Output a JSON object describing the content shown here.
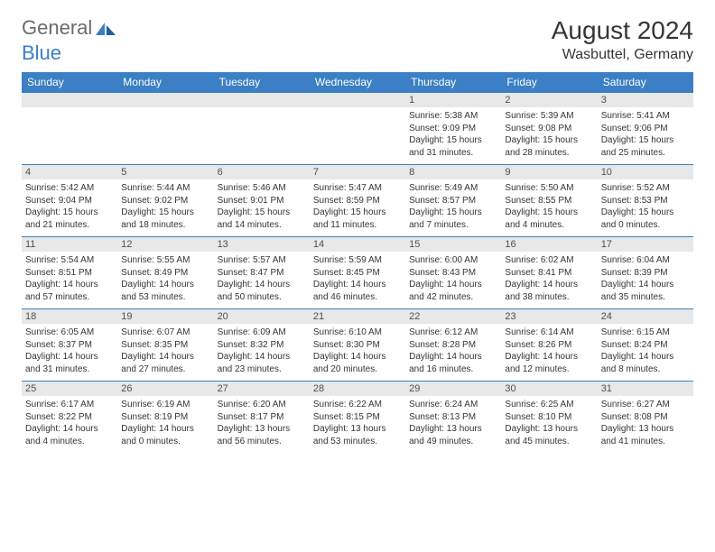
{
  "logo": {
    "word1": "General",
    "word2": "Blue"
  },
  "title": "August 2024",
  "location": "Wasbuttel, Germany",
  "colors": {
    "header_bg": "#3b7fc4",
    "header_text": "#ffffff",
    "daynum_bg": "#e8e8e8",
    "text": "#353535",
    "logo_gray": "#6b6b6b",
    "logo_blue": "#3b7fc4"
  },
  "day_names": [
    "Sunday",
    "Monday",
    "Tuesday",
    "Wednesday",
    "Thursday",
    "Friday",
    "Saturday"
  ],
  "weeks": [
    [
      null,
      null,
      null,
      null,
      {
        "n": "1",
        "sr": "Sunrise: 5:38 AM",
        "ss": "Sunset: 9:09 PM",
        "dl": "Daylight: 15 hours and 31 minutes."
      },
      {
        "n": "2",
        "sr": "Sunrise: 5:39 AM",
        "ss": "Sunset: 9:08 PM",
        "dl": "Daylight: 15 hours and 28 minutes."
      },
      {
        "n": "3",
        "sr": "Sunrise: 5:41 AM",
        "ss": "Sunset: 9:06 PM",
        "dl": "Daylight: 15 hours and 25 minutes."
      }
    ],
    [
      {
        "n": "4",
        "sr": "Sunrise: 5:42 AM",
        "ss": "Sunset: 9:04 PM",
        "dl": "Daylight: 15 hours and 21 minutes."
      },
      {
        "n": "5",
        "sr": "Sunrise: 5:44 AM",
        "ss": "Sunset: 9:02 PM",
        "dl": "Daylight: 15 hours and 18 minutes."
      },
      {
        "n": "6",
        "sr": "Sunrise: 5:46 AM",
        "ss": "Sunset: 9:01 PM",
        "dl": "Daylight: 15 hours and 14 minutes."
      },
      {
        "n": "7",
        "sr": "Sunrise: 5:47 AM",
        "ss": "Sunset: 8:59 PM",
        "dl": "Daylight: 15 hours and 11 minutes."
      },
      {
        "n": "8",
        "sr": "Sunrise: 5:49 AM",
        "ss": "Sunset: 8:57 PM",
        "dl": "Daylight: 15 hours and 7 minutes."
      },
      {
        "n": "9",
        "sr": "Sunrise: 5:50 AM",
        "ss": "Sunset: 8:55 PM",
        "dl": "Daylight: 15 hours and 4 minutes."
      },
      {
        "n": "10",
        "sr": "Sunrise: 5:52 AM",
        "ss": "Sunset: 8:53 PM",
        "dl": "Daylight: 15 hours and 0 minutes."
      }
    ],
    [
      {
        "n": "11",
        "sr": "Sunrise: 5:54 AM",
        "ss": "Sunset: 8:51 PM",
        "dl": "Daylight: 14 hours and 57 minutes."
      },
      {
        "n": "12",
        "sr": "Sunrise: 5:55 AM",
        "ss": "Sunset: 8:49 PM",
        "dl": "Daylight: 14 hours and 53 minutes."
      },
      {
        "n": "13",
        "sr": "Sunrise: 5:57 AM",
        "ss": "Sunset: 8:47 PM",
        "dl": "Daylight: 14 hours and 50 minutes."
      },
      {
        "n": "14",
        "sr": "Sunrise: 5:59 AM",
        "ss": "Sunset: 8:45 PM",
        "dl": "Daylight: 14 hours and 46 minutes."
      },
      {
        "n": "15",
        "sr": "Sunrise: 6:00 AM",
        "ss": "Sunset: 8:43 PM",
        "dl": "Daylight: 14 hours and 42 minutes."
      },
      {
        "n": "16",
        "sr": "Sunrise: 6:02 AM",
        "ss": "Sunset: 8:41 PM",
        "dl": "Daylight: 14 hours and 38 minutes."
      },
      {
        "n": "17",
        "sr": "Sunrise: 6:04 AM",
        "ss": "Sunset: 8:39 PM",
        "dl": "Daylight: 14 hours and 35 minutes."
      }
    ],
    [
      {
        "n": "18",
        "sr": "Sunrise: 6:05 AM",
        "ss": "Sunset: 8:37 PM",
        "dl": "Daylight: 14 hours and 31 minutes."
      },
      {
        "n": "19",
        "sr": "Sunrise: 6:07 AM",
        "ss": "Sunset: 8:35 PM",
        "dl": "Daylight: 14 hours and 27 minutes."
      },
      {
        "n": "20",
        "sr": "Sunrise: 6:09 AM",
        "ss": "Sunset: 8:32 PM",
        "dl": "Daylight: 14 hours and 23 minutes."
      },
      {
        "n": "21",
        "sr": "Sunrise: 6:10 AM",
        "ss": "Sunset: 8:30 PM",
        "dl": "Daylight: 14 hours and 20 minutes."
      },
      {
        "n": "22",
        "sr": "Sunrise: 6:12 AM",
        "ss": "Sunset: 8:28 PM",
        "dl": "Daylight: 14 hours and 16 minutes."
      },
      {
        "n": "23",
        "sr": "Sunrise: 6:14 AM",
        "ss": "Sunset: 8:26 PM",
        "dl": "Daylight: 14 hours and 12 minutes."
      },
      {
        "n": "24",
        "sr": "Sunrise: 6:15 AM",
        "ss": "Sunset: 8:24 PM",
        "dl": "Daylight: 14 hours and 8 minutes."
      }
    ],
    [
      {
        "n": "25",
        "sr": "Sunrise: 6:17 AM",
        "ss": "Sunset: 8:22 PM",
        "dl": "Daylight: 14 hours and 4 minutes."
      },
      {
        "n": "26",
        "sr": "Sunrise: 6:19 AM",
        "ss": "Sunset: 8:19 PM",
        "dl": "Daylight: 14 hours and 0 minutes."
      },
      {
        "n": "27",
        "sr": "Sunrise: 6:20 AM",
        "ss": "Sunset: 8:17 PM",
        "dl": "Daylight: 13 hours and 56 minutes."
      },
      {
        "n": "28",
        "sr": "Sunrise: 6:22 AM",
        "ss": "Sunset: 8:15 PM",
        "dl": "Daylight: 13 hours and 53 minutes."
      },
      {
        "n": "29",
        "sr": "Sunrise: 6:24 AM",
        "ss": "Sunset: 8:13 PM",
        "dl": "Daylight: 13 hours and 49 minutes."
      },
      {
        "n": "30",
        "sr": "Sunrise: 6:25 AM",
        "ss": "Sunset: 8:10 PM",
        "dl": "Daylight: 13 hours and 45 minutes."
      },
      {
        "n": "31",
        "sr": "Sunrise: 6:27 AM",
        "ss": "Sunset: 8:08 PM",
        "dl": "Daylight: 13 hours and 41 minutes."
      }
    ]
  ]
}
